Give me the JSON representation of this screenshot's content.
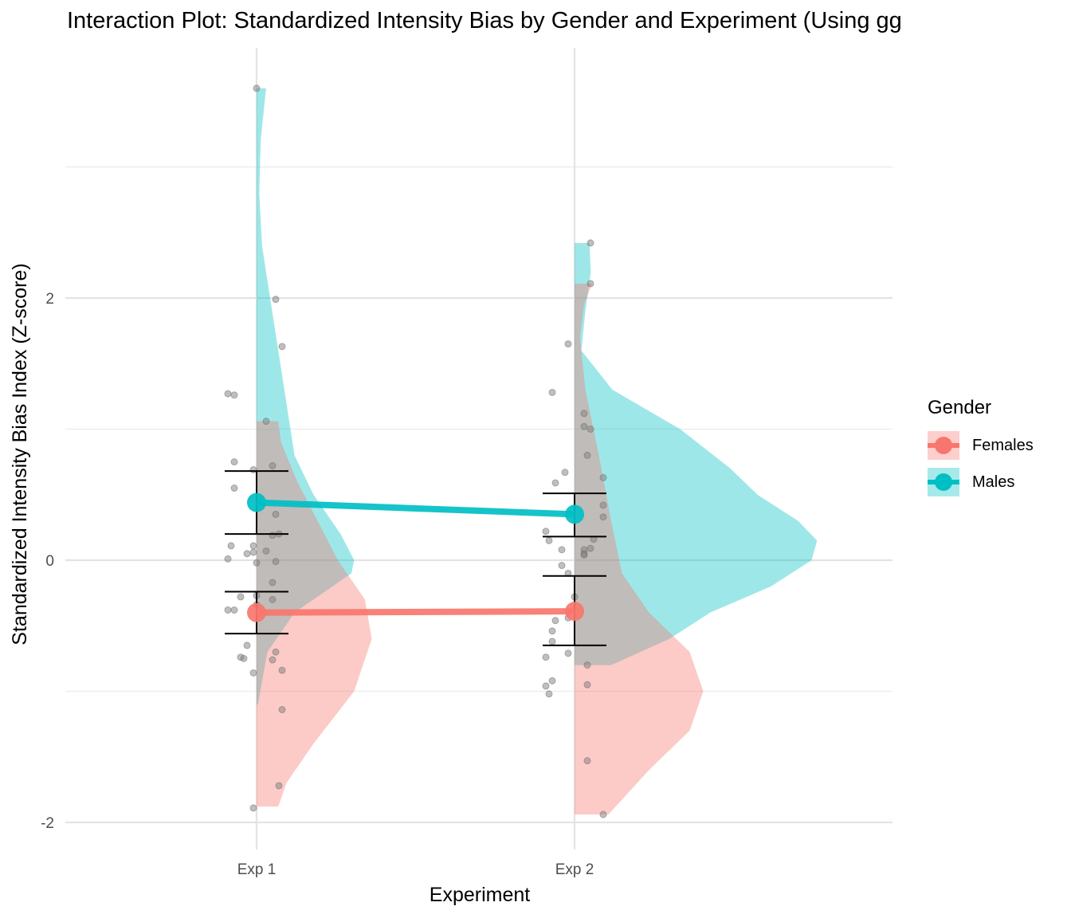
{
  "chart_data": {
    "type": "line",
    "title": "Interaction Plot: Standardized Intensity Bias by Gender and Experiment (Using gg",
    "xlabel": "Experiment",
    "ylabel": "Standardized Intensity Bias Index (Z-score)",
    "categories": [
      "Exp 1",
      "Exp 2"
    ],
    "ylim": [
      -2.2,
      3.9
    ],
    "yticks": [
      -2,
      0,
      2
    ],
    "yticklabels": [
      "-2",
      "0",
      "2"
    ],
    "grid": true,
    "legend": {
      "title": "Gender",
      "position": "right"
    },
    "series": [
      {
        "name": "Females",
        "color": "#F8766D",
        "means": [
          -0.4,
          -0.39
        ],
        "ci_low": [
          -0.56,
          -0.65
        ],
        "ci_high": [
          -0.24,
          -0.12
        ]
      },
      {
        "name": "Males",
        "color": "#00BFC4",
        "means": [
          0.44,
          0.35
        ],
        "ci_low": [
          0.2,
          0.18
        ],
        "ci_high": [
          0.68,
          0.51
        ]
      }
    ],
    "distributions": [
      {
        "experiment": "Exp 1",
        "group": "Males",
        "range": [
          -1.1,
          3.6
        ],
        "density": [
          [
            -1.1,
            0.01
          ],
          [
            -0.7,
            0.08
          ],
          [
            -0.4,
            0.28
          ],
          [
            -0.1,
            0.7
          ],
          [
            0.0,
            0.72
          ],
          [
            0.2,
            0.62
          ],
          [
            0.5,
            0.42
          ],
          [
            0.8,
            0.28
          ],
          [
            1.2,
            0.22
          ],
          [
            1.6,
            0.16
          ],
          [
            2.0,
            0.1
          ],
          [
            2.4,
            0.04
          ],
          [
            2.8,
            0.02
          ],
          [
            3.2,
            0.03
          ],
          [
            3.6,
            0.07
          ]
        ]
      },
      {
        "experiment": "Exp 1",
        "group": "Females",
        "range": [
          -1.88,
          1.06
        ],
        "density": [
          [
            -1.88,
            0.16
          ],
          [
            -1.7,
            0.22
          ],
          [
            -1.4,
            0.42
          ],
          [
            -1.0,
            0.72
          ],
          [
            -0.6,
            0.85
          ],
          [
            -0.3,
            0.8
          ],
          [
            0.0,
            0.6
          ],
          [
            0.3,
            0.45
          ],
          [
            0.6,
            0.3
          ],
          [
            0.9,
            0.18
          ],
          [
            1.06,
            0.16
          ]
        ]
      },
      {
        "experiment": "Exp 2",
        "group": "Males",
        "range": [
          -0.8,
          2.42
        ],
        "density": [
          [
            -0.8,
            0.27
          ],
          [
            -0.6,
            0.7
          ],
          [
            -0.4,
            1.0
          ],
          [
            -0.2,
            1.45
          ],
          [
            0.0,
            1.75
          ],
          [
            0.15,
            1.79
          ],
          [
            0.3,
            1.65
          ],
          [
            0.5,
            1.35
          ],
          [
            0.7,
            1.15
          ],
          [
            1.0,
            0.78
          ],
          [
            1.3,
            0.28
          ],
          [
            1.6,
            0.05
          ],
          [
            1.9,
            0.08
          ],
          [
            2.2,
            0.12
          ],
          [
            2.42,
            0.11
          ]
        ]
      },
      {
        "experiment": "Exp 2",
        "group": "Females",
        "range": [
          -1.94,
          2.11
        ],
        "density": [
          [
            -1.94,
            0.25
          ],
          [
            -1.6,
            0.55
          ],
          [
            -1.3,
            0.85
          ],
          [
            -1.0,
            0.95
          ],
          [
            -0.7,
            0.85
          ],
          [
            -0.4,
            0.55
          ],
          [
            -0.1,
            0.35
          ],
          [
            0.3,
            0.27
          ],
          [
            0.8,
            0.18
          ],
          [
            1.3,
            0.08
          ],
          [
            1.7,
            0.04
          ],
          [
            1.95,
            0.07
          ],
          [
            2.11,
            0.13
          ]
        ]
      }
    ],
    "points": [
      {
        "experiment": "Exp 1",
        "x_offset": [
          0.0,
          0.06,
          0.08,
          -0.09,
          -0.07,
          0.03,
          -0.07,
          0.05,
          -0.07,
          -0.01,
          0.06,
          0.07,
          0.05,
          -0.01,
          -0.08,
          -0.01,
          0.03,
          -0.03,
          -0.09,
          0.06,
          0.05,
          0.0,
          0.0,
          -0.05,
          -0.09,
          0.05,
          -0.07,
          0.0,
          -0.03,
          0.06,
          0.05,
          -0.05,
          -0.04,
          0.08,
          -0.01,
          0.08,
          0.07,
          -0.01
        ],
        "y": [
          3.6,
          1.99,
          1.63,
          1.27,
          1.26,
          1.06,
          0.75,
          0.72,
          0.55,
          0.69,
          0.35,
          0.2,
          0.19,
          0.11,
          0.11,
          0.06,
          0.07,
          0.05,
          0.01,
          -0.01,
          -0.17,
          -0.02,
          -0.27,
          -0.28,
          -0.38,
          -0.3,
          -0.38,
          -0.34,
          -0.65,
          -0.7,
          -0.76,
          -0.74,
          -0.75,
          -0.84,
          -0.86,
          -1.14,
          -1.72,
          -1.89
        ]
      },
      {
        "experiment": "Exp 2",
        "x_offset": [
          0.05,
          0.05,
          -0.02,
          -0.07,
          0.03,
          0.03,
          0.05,
          0.04,
          0.09,
          -0.03,
          -0.06,
          0.09,
          0.09,
          0.06,
          -0.09,
          -0.08,
          0.05,
          0.03,
          -0.04,
          0.03,
          0.03,
          -0.04,
          -0.02,
          0.0,
          -0.02,
          -0.06,
          -0.07,
          -0.07,
          -0.02,
          -0.09,
          0.04,
          -0.07,
          0.04,
          -0.09,
          -0.08,
          0.04,
          0.09
        ],
        "y": [
          2.42,
          2.11,
          1.65,
          1.28,
          1.12,
          1.02,
          1.0,
          0.8,
          0.63,
          0.67,
          0.59,
          0.42,
          0.33,
          0.16,
          0.22,
          0.15,
          0.09,
          0.08,
          0.08,
          0.05,
          0.04,
          -0.04,
          -0.1,
          -0.28,
          -0.44,
          -0.46,
          -0.54,
          -0.62,
          -0.71,
          -0.74,
          -0.8,
          -0.92,
          -0.95,
          -0.96,
          -1.02,
          -1.53,
          -1.94
        ]
      }
    ]
  }
}
